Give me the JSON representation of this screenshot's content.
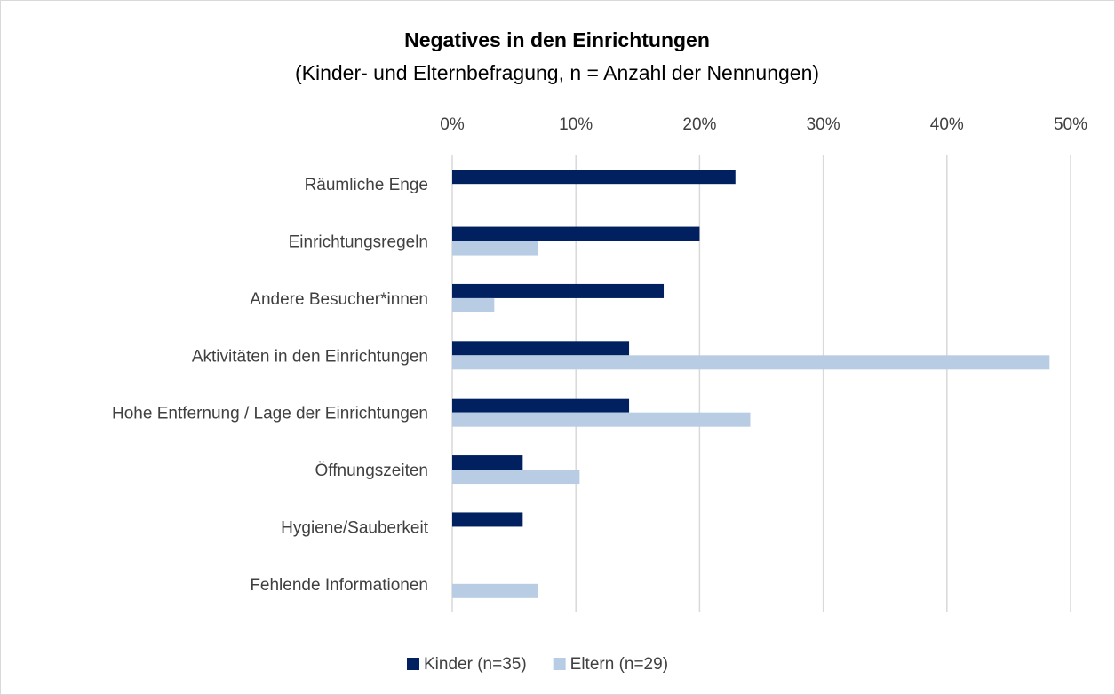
{
  "chart_data": {
    "type": "bar",
    "orientation": "horizontal",
    "title": "Negatives in den Einrichtungen",
    "subtitle": "(Kinder- und Elternbefragung, n = Anzahl der Nennungen)",
    "categories": [
      "Räumliche Enge",
      "Einrichtungsregeln",
      "Andere Besucher*innen",
      "Aktivitäten in den Einrichtungen",
      "Hohe Entfernung / Lage der Einrichtungen",
      "Öffnungszeiten",
      "Hygiene/Sauberkeit",
      "Fehlende Informationen"
    ],
    "series": [
      {
        "name": "Kinder (n=35)",
        "color": "#002060",
        "values": [
          22.9,
          20,
          17.1,
          14.3,
          14.3,
          5.7,
          5.7,
          null
        ]
      },
      {
        "name": "Eltern (n=29)",
        "color": "#b8cce4",
        "values": [
          null,
          6.9,
          3.4,
          48.3,
          24.1,
          10.3,
          null,
          6.9
        ]
      }
    ],
    "xlim": [
      0,
      50
    ],
    "xticks": [
      {
        "value": 0,
        "label": "0%"
      },
      {
        "value": 10,
        "label": "10%"
      },
      {
        "value": 20,
        "label": "20%"
      },
      {
        "value": 30,
        "label": "30%"
      },
      {
        "value": 40,
        "label": "40%"
      },
      {
        "value": 50,
        "label": "50%"
      }
    ],
    "grid": true,
    "legend": "bottom"
  }
}
